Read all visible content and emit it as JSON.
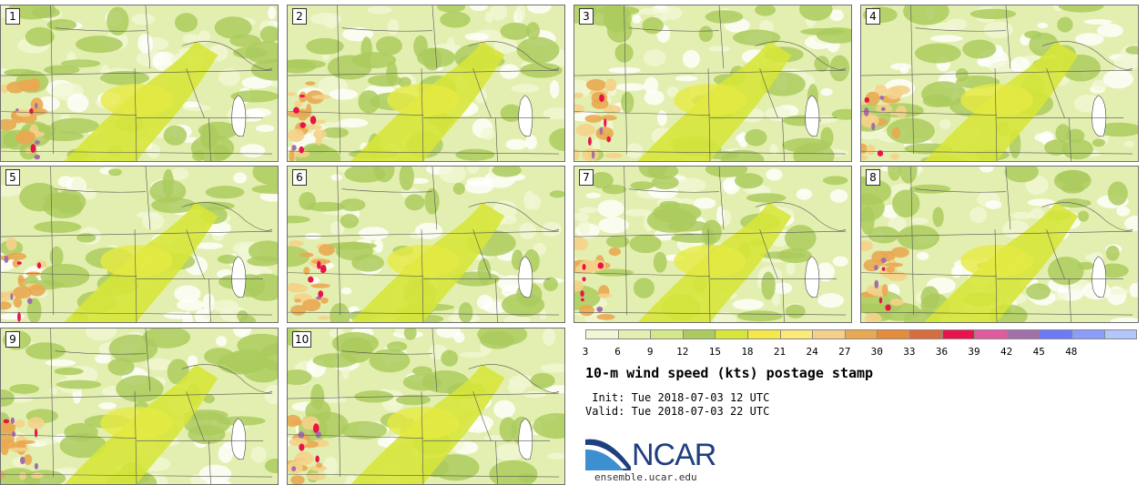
{
  "panels": [
    {
      "label": "1"
    },
    {
      "label": "2"
    },
    {
      "label": "3"
    },
    {
      "label": "4"
    },
    {
      "label": "5"
    },
    {
      "label": "6"
    },
    {
      "label": "7"
    },
    {
      "label": "8"
    },
    {
      "label": "9"
    },
    {
      "label": "10"
    }
  ],
  "colorbar": {
    "labels": [
      "3",
      "6",
      "9",
      "12",
      "15",
      "18",
      "21",
      "24",
      "27",
      "30",
      "33",
      "36",
      "39",
      "42",
      "45",
      "48"
    ],
    "colors": [
      "#f1f7d6",
      "#e3efb0",
      "#d4e889",
      "#abcb5e",
      "#d6e63a",
      "#f5e84a",
      "#fbe97a",
      "#f4d18a",
      "#e9a852",
      "#e48c3a",
      "#d76d3e",
      "#e8134a",
      "#e05aa0",
      "#a36fa8",
      "#6d7af5",
      "#8a9df8",
      "#b3c6fb"
    ]
  },
  "title": "10-m wind speed (kts) postage stamp",
  "init": " Init: Tue 2018-07-03 12 UTC",
  "valid": "Valid: Tue 2018-07-03 22 UTC",
  "logo": {
    "word": "NCAR",
    "site": "ensemble.ucar.edu"
  }
}
